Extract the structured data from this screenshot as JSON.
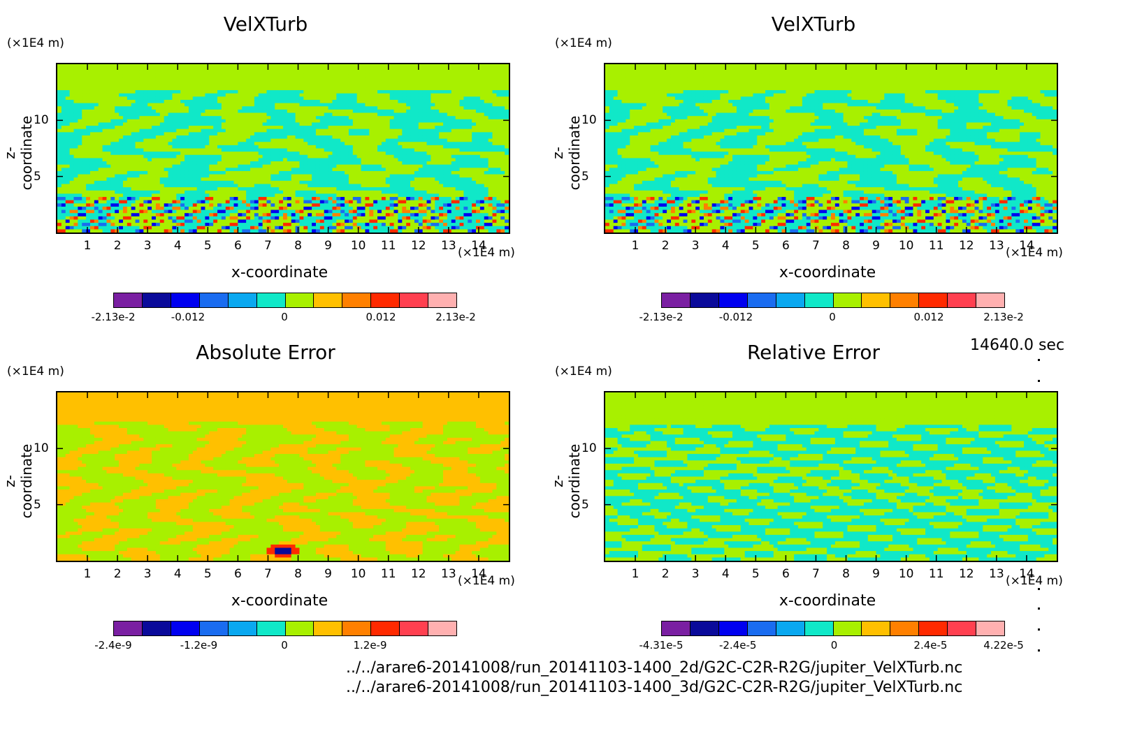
{
  "colors": {
    "levels": [
      "#7a1fa2",
      "#0a0a9a",
      "#0000f0",
      "#1a6cf0",
      "#0aa8f0",
      "#10e8c8",
      "#a8f000",
      "#ffc000",
      "#ff8000",
      "#ff2a00",
      "#ff4050",
      "#ffb0b0"
    ]
  },
  "time_label": "14640.0 sec",
  "files": [
    "../../arare6-20141008/run_20141103-1400_2d/G2C-C2R-R2G/jupiter_VelXTurb.nc",
    "../../arare6-20141008/run_20141103-1400_3d/G2C-C2R-R2G/jupiter_VelXTurb.nc"
  ],
  "chart_data": [
    {
      "type": "heatmap",
      "title": "VelXTurb",
      "xlabel": "x-coordinate",
      "ylabel": "z-coordinate",
      "x_unit": "(×1E4 m)",
      "z_unit": "(×1E4 m)",
      "xlim": [
        0,
        15
      ],
      "ylim": [
        0,
        15
      ],
      "x_ticks": [
        "1",
        "2",
        "3",
        "4",
        "5",
        "6",
        "7",
        "8",
        "9",
        "10",
        "11",
        "12",
        "13",
        "14"
      ],
      "y_ticks": [
        "5",
        "10"
      ],
      "colorbar_labels": [
        "-2.13e-2",
        "-0.012",
        "0",
        "0.012",
        "2.13e-2"
      ],
      "colorbar_range": [
        -0.0213,
        0.0213
      ],
      "pattern": "velx"
    },
    {
      "type": "heatmap",
      "title": "VelXTurb",
      "xlabel": "x-coordinate",
      "ylabel": "z-coordinate",
      "x_unit": "(×1E4 m)",
      "z_unit": "(×1E4 m)",
      "xlim": [
        0,
        15
      ],
      "ylim": [
        0,
        15
      ],
      "x_ticks": [
        "1",
        "2",
        "3",
        "4",
        "5",
        "6",
        "7",
        "8",
        "9",
        "10",
        "11",
        "12",
        "13",
        "14"
      ],
      "y_ticks": [
        "5",
        "10"
      ],
      "colorbar_labels": [
        "-2.13e-2",
        "-0.012",
        "0",
        "0.012",
        "2.13e-2"
      ],
      "colorbar_range": [
        -0.0213,
        0.0213
      ],
      "pattern": "velx"
    },
    {
      "type": "heatmap",
      "title": "Absolute Error",
      "xlabel": "x-coordinate",
      "ylabel": "z-coordinate",
      "x_unit": "(×1E4 m)",
      "z_unit": "(×1E4 m)",
      "xlim": [
        0,
        15
      ],
      "ylim": [
        0,
        15
      ],
      "x_ticks": [
        "1",
        "2",
        "3",
        "4",
        "5",
        "6",
        "7",
        "8",
        "9",
        "10",
        "11",
        "12",
        "13",
        "14"
      ],
      "y_ticks": [
        "5",
        "10"
      ],
      "colorbar_labels": [
        "-2.4e-9",
        "-1.2e-9",
        "0",
        "1.2e-9"
      ],
      "colorbar_range": [
        -2.4e-09,
        2.4e-09
      ],
      "pattern": "abs"
    },
    {
      "type": "heatmap",
      "title": "Relative Error",
      "xlabel": "x-coordinate",
      "ylabel": "z-coordinate",
      "x_unit": "(×1E4 m)",
      "z_unit": "(×1E4 m)",
      "xlim": [
        0,
        15
      ],
      "ylim": [
        0,
        15
      ],
      "x_ticks": [
        "1",
        "2",
        "3",
        "4",
        "5",
        "6",
        "7",
        "8",
        "9",
        "10",
        "11",
        "12",
        "13",
        "14"
      ],
      "y_ticks": [
        "5",
        "10"
      ],
      "colorbar_labels": [
        "-4.31e-5",
        "-2.4e-5",
        "0",
        "2.4e-5",
        "4.22e-5"
      ],
      "colorbar_range": [
        -4.31e-05,
        4.22e-05
      ],
      "pattern": "rel"
    }
  ]
}
